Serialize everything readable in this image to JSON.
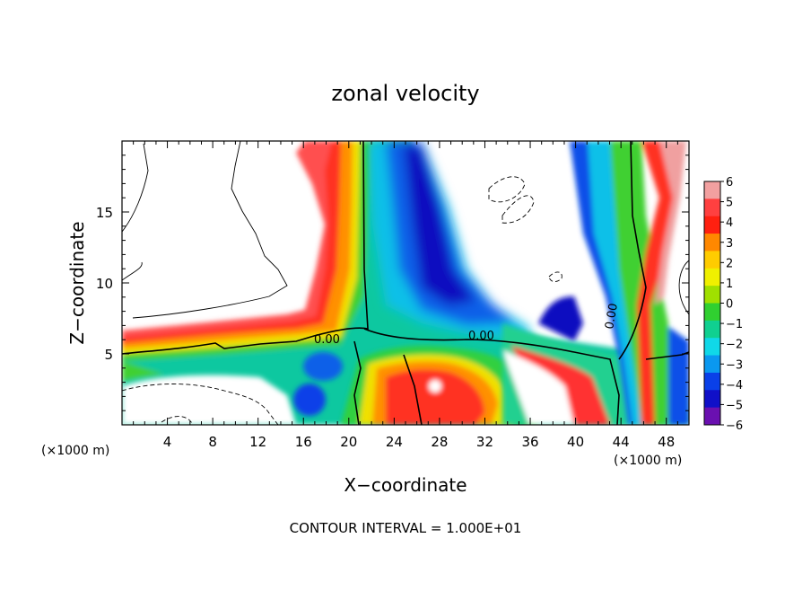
{
  "chart_data": {
    "type": "heatmap",
    "title": "zonal velocity",
    "xlabel": "X−coordinate",
    "ylabel": "Z−coordinate",
    "x_unit_left": "(×1000 m)",
    "x_unit_right": "(×1000 m)",
    "xlim": [
      0,
      50
    ],
    "ylim": [
      0,
      20
    ],
    "x_ticks": [
      4,
      8,
      12,
      16,
      20,
      24,
      28,
      32,
      36,
      40,
      44,
      48
    ],
    "y_ticks": [
      5,
      10,
      15
    ],
    "footer": "CONTOUR INTERVAL = 1.000E+01",
    "colorbar": {
      "ticks": [
        6,
        5,
        4,
        3,
        2,
        1,
        0,
        -1,
        -2,
        -3,
        -4,
        -5,
        -6
      ],
      "tick_labels": [
        "6",
        "5",
        "4",
        "3",
        "2",
        "1",
        "0",
        "−1",
        "−2",
        "−3",
        "−4",
        "−5",
        "−6"
      ],
      "range": [
        -6,
        6
      ],
      "colors_top_to_bottom": [
        "#f2a0a0",
        "#ff4040",
        "#ff2010",
        "#ff8800",
        "#ffcc00",
        "#f0f000",
        "#a0e000",
        "#30d030",
        "#10d090",
        "#10d8e8",
        "#0a98f0",
        "#0a40e8",
        "#1010c8",
        "#6a10b0"
      ]
    },
    "contour_labels": [
      {
        "text": "0.00",
        "x": 14.8,
        "z": 6.1
      },
      {
        "text": "0.00",
        "x": 32.3,
        "z": 6.3
      },
      {
        "text": "0.00",
        "x": 44.5,
        "z": 8.1
      }
    ],
    "field_features": [
      {
        "name": "positive band left",
        "value": 5
      },
      {
        "name": "negative core center",
        "value": -5
      },
      {
        "name": "negative right column",
        "value": -5
      },
      {
        "name": "positive right column",
        "value": 5
      }
    ]
  }
}
